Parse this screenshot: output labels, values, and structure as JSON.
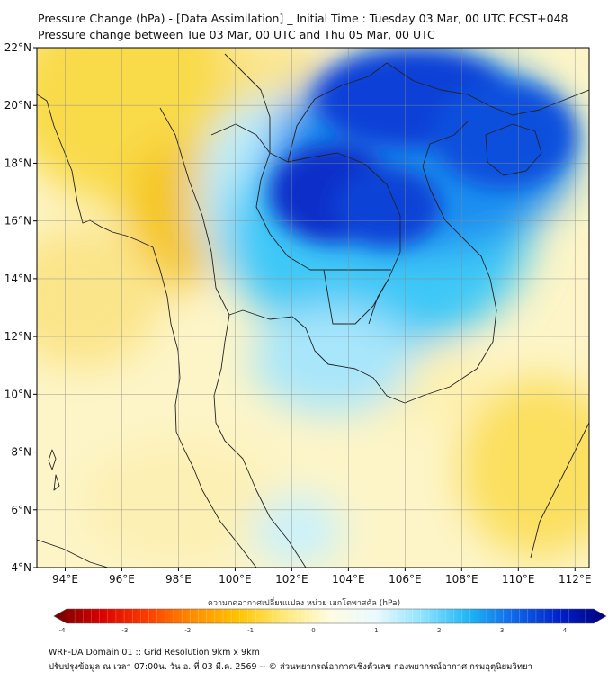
{
  "title_line1": "Pressure Change (hPa) - [Data Assimilation] _ Initial Time : Tuesday 03 Mar, 00 UTC FCST+048",
  "title_line2": "Pressure change between Tue 03 Mar, 00 UTC and Thu 05 Mar, 00 UTC",
  "map": {
    "lon_range": [
      93,
      112.5
    ],
    "lat_range": [
      4,
      22
    ],
    "lon_ticks": [
      "94°E",
      "96°E",
      "98°E",
      "100°E",
      "102°E",
      "104°E",
      "106°E",
      "108°E",
      "110°E",
      "112°E"
    ],
    "lat_ticks": [
      "22°N",
      "20°N",
      "18°N",
      "16°N",
      "14°N",
      "12°N",
      "10°N",
      "8°N",
      "6°N",
      "4°N"
    ],
    "grid": true
  },
  "colorbar": {
    "label": "ความกดอากาศเปลี่ยนแปลง หน่วย เฮกโตพาสคัล (hPa)",
    "min": -4,
    "max": 4,
    "ticks": [
      "-4",
      "-3",
      "-2",
      "-1",
      "0",
      "1",
      "2",
      "3",
      "4"
    ],
    "colors": [
      "#6e0000",
      "#d80000",
      "#ff3a00",
      "#ff8c00",
      "#ffc400",
      "#ffe978",
      "#fffce0",
      "#eafaff",
      "#8fe3ff",
      "#1fb6f5",
      "#1067ea",
      "#0020c8",
      "#00007a"
    ]
  },
  "footer": {
    "line1": "WRF-DA Domain 01 :: Grid Resolution 9km x 9km",
    "line2": "ปรับปรุงข้อมูล ณ เวลา 07:00น. วัน อ. ที่ 03 มี.ค. 2569 -- © ส่วนพยากรณ์อากาศเชิงตัวเลข กองพยากรณ์อากาศ กรมอุตุนิยมวิทยา"
  }
}
